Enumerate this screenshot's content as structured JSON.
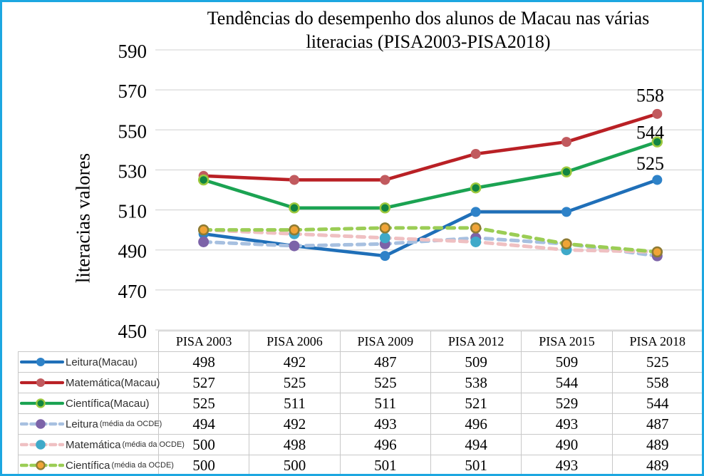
{
  "window": {
    "border_color": "#1ca7e1",
    "background": "#ffffff"
  },
  "chart_data": {
    "type": "line",
    "title": "Tendências do desempenho dos alunos de Macau nas várias literacias (PISA2003-PISA2018)",
    "title_lines": [
      "Tendências do desempenho dos alunos de Macau nas várias",
      "literacias (PISA2003-PISA2018)"
    ],
    "xlabel": "",
    "ylabel": "literacias valores",
    "ylim": [
      450,
      590
    ],
    "yticks": [
      590,
      570,
      550,
      530,
      510,
      490,
      470,
      450
    ],
    "grid": true,
    "gridline_color": "#d9d9d9",
    "legend_position": "table-left",
    "categories": [
      "PISA 2003",
      "PISA 2006",
      "PISA 2009",
      "PISA 2012",
      "PISA 2015",
      "PISA 2018"
    ],
    "series": [
      {
        "name": "Leitura(Macau)",
        "label_main": "Leitura(Macau)",
        "label_suffix": "",
        "style": "solid",
        "line_color": "#1f6fb8",
        "marker_color": "#2e82c8",
        "marker_ring": "",
        "values": [
          498,
          492,
          487,
          509,
          509,
          525
        ]
      },
      {
        "name": "Matemática(Macau)",
        "label_main": "Matemática(Macau)",
        "label_suffix": "",
        "style": "solid",
        "line_color": "#b92025",
        "marker_color": "#c15a5e",
        "marker_ring": "",
        "values": [
          527,
          525,
          525,
          538,
          544,
          558
        ]
      },
      {
        "name": "Científica(Macau)",
        "label_main": "Científica(Macau)",
        "label_suffix": "",
        "style": "solid",
        "line_color": "#1ba352",
        "marker_color": "#118542",
        "marker_ring": "#9dc93e",
        "values": [
          525,
          511,
          511,
          521,
          529,
          544
        ]
      },
      {
        "name": "Leitura (média da OCDE)",
        "label_main": "Leitura",
        "label_suffix": "(média da OCDE)",
        "style": "dashed",
        "line_color": "#a7c0e0",
        "marker_color": "#7c63a8",
        "marker_ring": "",
        "values": [
          494,
          492,
          493,
          496,
          493,
          487
        ]
      },
      {
        "name": "Matemática (média da OCDE)",
        "label_main": "Matemática",
        "label_suffix": "(média da OCDE)",
        "style": "dashed",
        "line_color": "#efc0c2",
        "marker_color": "#3fa9c9",
        "marker_ring": "",
        "values": [
          500,
          498,
          496,
          494,
          490,
          489
        ]
      },
      {
        "name": "Científica(média da OCDE)",
        "label_main": "Científica",
        "label_suffix": "(média da OCDE)",
        "style": "dashed",
        "line_color": "#9bcd55",
        "marker_color": "#f0a437",
        "marker_ring": "#8e7b33",
        "values": [
          500,
          500,
          501,
          501,
          493,
          489
        ]
      }
    ],
    "annotations": [
      {
        "text": "558",
        "x_index": 5,
        "y_value": 558,
        "dy": -26
      },
      {
        "text": "544",
        "x_index": 5,
        "y_value": 544,
        "dy": -13
      },
      {
        "text": "525",
        "x_index": 5,
        "y_value": 525,
        "dy": -23
      }
    ]
  }
}
